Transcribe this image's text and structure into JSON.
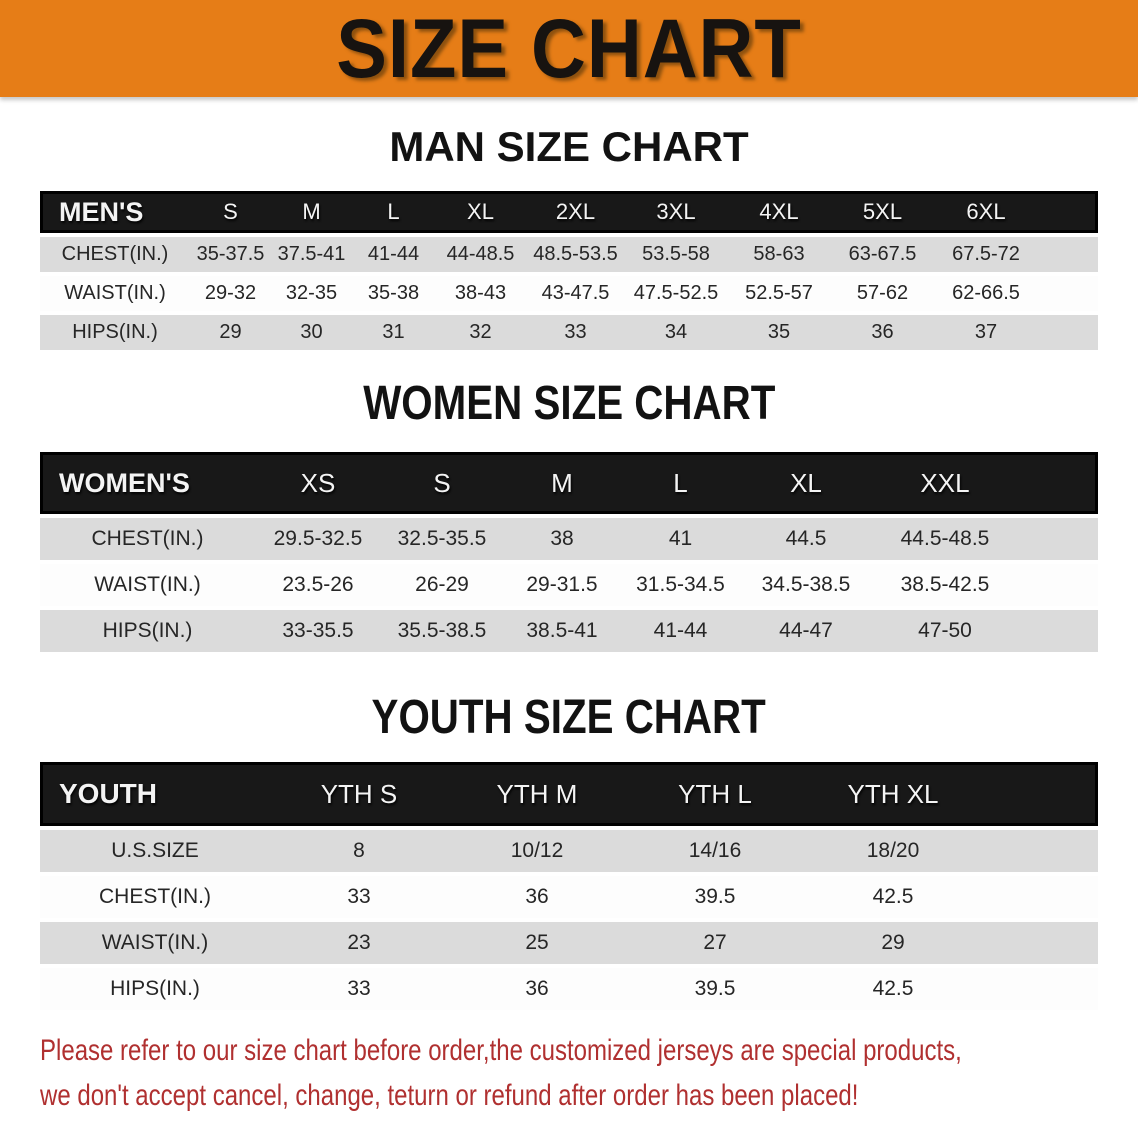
{
  "banner": {
    "title": "SIZE CHART",
    "bg_color": "#E67D17",
    "text_color": "#171310"
  },
  "headings": {
    "man": "MAN SIZE CHART",
    "women": "WOMEN SIZE CHART",
    "youth": "YOUTH SIZE CHART"
  },
  "tables": {
    "men": {
      "label": "MEN'S",
      "columns": [
        "S",
        "M",
        "L",
        "XL",
        "2XL",
        "3XL",
        "4XL",
        "5XL",
        "6XL"
      ],
      "rows": [
        {
          "label": "CHEST(IN.)",
          "values": [
            "35-37.5",
            "37.5-41",
            "41-44",
            "44-48.5",
            "48.5-53.5",
            "53.5-58",
            "58-63",
            "63-67.5",
            "67.5-72"
          ]
        },
        {
          "label": "WAIST(IN.)",
          "values": [
            "29-32",
            "32-35",
            "35-38",
            "38-43",
            "43-47.5",
            "47.5-52.5",
            "52.5-57",
            "57-62",
            "62-66.5"
          ]
        },
        {
          "label": "HIPS(IN.)",
          "values": [
            "29",
            "30",
            "31",
            "32",
            "33",
            "34",
            "35",
            "36",
            "37"
          ]
        }
      ]
    },
    "women": {
      "label": "WOMEN'S",
      "columns": [
        "XS",
        "S",
        "M",
        "L",
        "XL",
        "XXL"
      ],
      "rows": [
        {
          "label": "CHEST(IN.)",
          "values": [
            "29.5-32.5",
            "32.5-35.5",
            "38",
            "41",
            "44.5",
            "44.5-48.5"
          ]
        },
        {
          "label": "WAIST(IN.)",
          "values": [
            "23.5-26",
            "26-29",
            "29-31.5",
            "31.5-34.5",
            "34.5-38.5",
            "38.5-42.5"
          ]
        },
        {
          "label": "HIPS(IN.)",
          "values": [
            "33-35.5",
            "35.5-38.5",
            "38.5-41",
            "41-44",
            "44-47",
            "47-50"
          ]
        }
      ]
    },
    "youth": {
      "label": "YOUTH",
      "columns": [
        "YTH S",
        "YTH M",
        "YTH L",
        "YTH XL"
      ],
      "rows": [
        {
          "label": "U.S.SIZE",
          "values": [
            "8",
            "10/12",
            "14/16",
            "18/20"
          ]
        },
        {
          "label": "CHEST(IN.)",
          "values": [
            "33",
            "36",
            "39.5",
            "42.5"
          ]
        },
        {
          "label": "WAIST(IN.)",
          "values": [
            "23",
            "25",
            "27",
            "29"
          ]
        },
        {
          "label": "HIPS(IN.)",
          "values": [
            "33",
            "36",
            "39.5",
            "42.5"
          ]
        }
      ]
    }
  },
  "disclaimer": {
    "line1": "Please refer to our size chart before order,the customized jerseys are special products,",
    "line2": "we don't accept cancel, change, teturn or refund after order has been placed!",
    "color": "#B03030"
  },
  "style_tokens": {
    "band_gray": "#DBDBDB",
    "band_white": "#FDFDFD",
    "header_black": "#181818"
  }
}
